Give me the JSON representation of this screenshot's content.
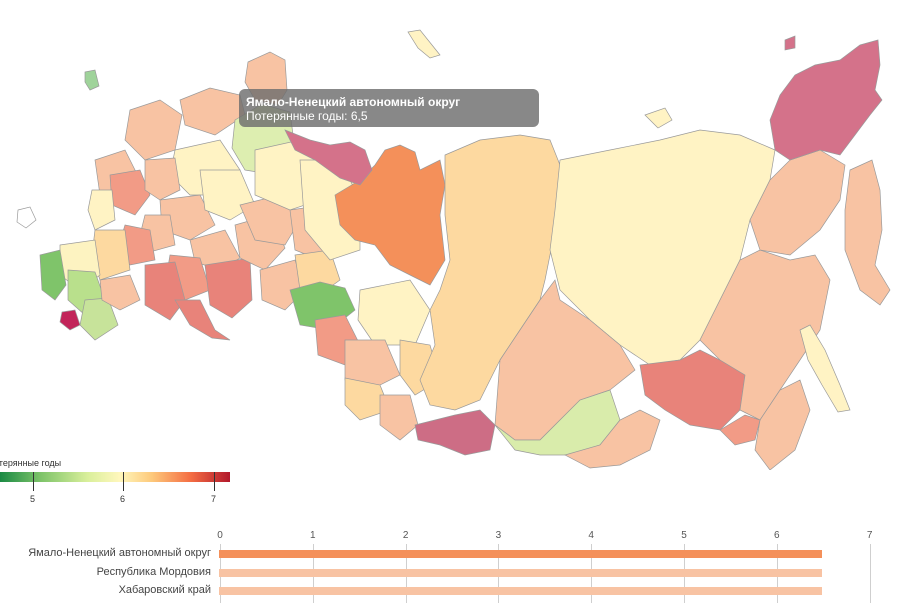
{
  "tooltip": {
    "region": "Ямало-Ненецкий автономный округ",
    "metric_line": "Потерянные годы: 6,5"
  },
  "legend": {
    "title": "отерянные годы",
    "ticks": [
      "5",
      "6",
      "7"
    ],
    "colors": [
      "#1a8a44",
      "#7fc46a",
      "#d9ef9b",
      "#fff7bc",
      "#fdc97b",
      "#f46d43",
      "#b2182b"
    ]
  },
  "bar_chart": {
    "axis_ticks": [
      "0",
      "1",
      "2",
      "3",
      "4",
      "5",
      "6",
      "7"
    ],
    "rows": [
      {
        "label": "Ямало-Ненецкий автономный округ",
        "value": 6.5,
        "color": "#f4905a"
      },
      {
        "label": "Республика Мордовия",
        "value": 6.5,
        "color": "#f8c3a3"
      },
      {
        "label": "Хабаровский край",
        "value": 6.5,
        "color": "#f8c3a3"
      }
    ]
  },
  "chart_data": {
    "type": "bar",
    "categories": [
      "Ямало-Ненецкий автономный округ",
      "Республика Мордовия",
      "Хабаровский край"
    ],
    "values": [
      6.5,
      6.5,
      6.5
    ],
    "xlim": [
      0,
      7
    ],
    "orientation": "horizontal"
  }
}
